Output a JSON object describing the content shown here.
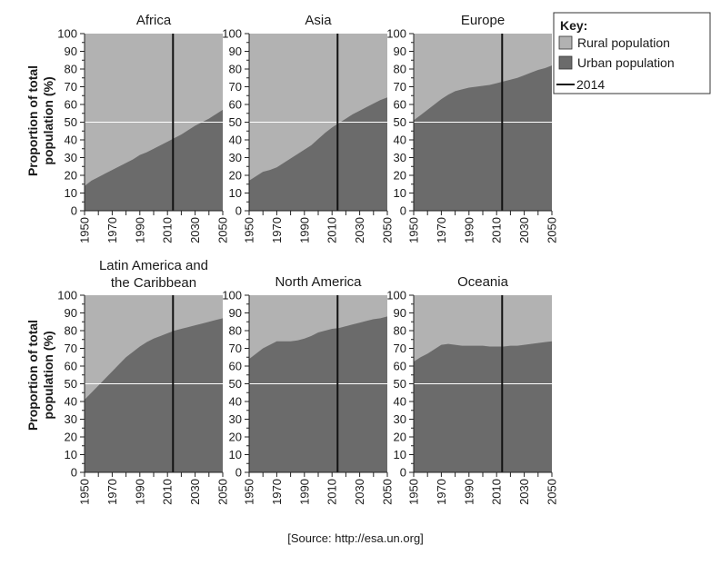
{
  "source": "[Source: http://esa.un.org]",
  "ylabel_line1": "Proportion of total",
  "ylabel_line2": "population (%)",
  "legend": {
    "title": "Key:",
    "rural_label": "Rural population",
    "urban_label": "Urban population",
    "marker_label": "2014"
  },
  "colors": {
    "rural": "#b2b2b2",
    "urban": "#6b6b6b",
    "marker": "#111111",
    "midline": "#ffffff"
  },
  "chart_data": [
    {
      "type": "area",
      "title": "Africa",
      "x": [
        1950,
        1955,
        1960,
        1965,
        1970,
        1975,
        1980,
        1985,
        1990,
        1995,
        2000,
        2005,
        2010,
        2015,
        2020,
        2025,
        2030,
        2035,
        2040,
        2045,
        2050
      ],
      "series": [
        {
          "name": "Urban population",
          "values": [
            14,
            17,
            19,
            21,
            23,
            25,
            27,
            29,
            31.5,
            33,
            35,
            37,
            39,
            41,
            43,
            45.5,
            48,
            50,
            52,
            54.5,
            57
          ]
        }
      ],
      "xticks": [
        1950,
        1970,
        1990,
        2010,
        2030,
        2050
      ],
      "yticks": [
        0,
        10,
        20,
        30,
        40,
        50,
        60,
        70,
        80,
        90,
        100
      ],
      "ylim": [
        0,
        100
      ],
      "xlim": [
        1950,
        2050
      ],
      "marker_x": 2014
    },
    {
      "type": "area",
      "title": "Asia",
      "x": [
        1950,
        1955,
        1960,
        1965,
        1970,
        1975,
        1980,
        1985,
        1990,
        1995,
        2000,
        2005,
        2010,
        2015,
        2020,
        2025,
        2030,
        2035,
        2040,
        2045,
        2050
      ],
      "series": [
        {
          "name": "Urban population",
          "values": [
            17,
            19.5,
            22,
            23,
            24.5,
            27,
            29.5,
            32,
            34.5,
            37,
            40.5,
            44,
            47,
            49.5,
            52,
            54.5,
            56.5,
            58.5,
            60.5,
            62.5,
            64
          ]
        }
      ],
      "xticks": [
        1950,
        1970,
        1990,
        2010,
        2030,
        2050
      ],
      "yticks": [
        0,
        10,
        20,
        30,
        40,
        50,
        60,
        70,
        80,
        90,
        100
      ],
      "ylim": [
        0,
        100
      ],
      "xlim": [
        1950,
        2050
      ],
      "marker_x": 2014
    },
    {
      "type": "area",
      "title": "Europe",
      "x": [
        1950,
        1955,
        1960,
        1965,
        1970,
        1975,
        1980,
        1985,
        1990,
        1995,
        2000,
        2005,
        2010,
        2015,
        2020,
        2025,
        2030,
        2035,
        2040,
        2045,
        2050
      ],
      "series": [
        {
          "name": "Urban population",
          "values": [
            51,
            54,
            57,
            60,
            63,
            65.5,
            67.5,
            68.5,
            69.5,
            70,
            70.5,
            71,
            72,
            73,
            74,
            75,
            76.5,
            78,
            79.5,
            80.5,
            82
          ]
        }
      ],
      "xticks": [
        1950,
        1970,
        1990,
        2010,
        2030,
        2050
      ],
      "yticks": [
        0,
        10,
        20,
        30,
        40,
        50,
        60,
        70,
        80,
        90,
        100
      ],
      "ylim": [
        0,
        100
      ],
      "xlim": [
        1950,
        2050
      ],
      "marker_x": 2014
    },
    {
      "type": "area",
      "title": "Latin America and",
      "title_line2": "the Caribbean",
      "x": [
        1950,
        1955,
        1960,
        1965,
        1970,
        1975,
        1980,
        1985,
        1990,
        1995,
        2000,
        2005,
        2010,
        2015,
        2020,
        2025,
        2030,
        2035,
        2040,
        2045,
        2050
      ],
      "series": [
        {
          "name": "Urban population",
          "values": [
            41,
            45,
            49,
            53,
            57,
            61,
            65,
            68,
            71,
            73.5,
            75.5,
            77,
            78.5,
            80,
            81,
            82,
            83,
            84,
            85,
            86,
            87
          ]
        }
      ],
      "xticks": [
        1950,
        1970,
        1990,
        2010,
        2030,
        2050
      ],
      "yticks": [
        0,
        10,
        20,
        30,
        40,
        50,
        60,
        70,
        80,
        90,
        100
      ],
      "ylim": [
        0,
        100
      ],
      "xlim": [
        1950,
        2050
      ],
      "marker_x": 2014
    },
    {
      "type": "area",
      "title": "North America",
      "x": [
        1950,
        1955,
        1960,
        1965,
        1970,
        1975,
        1980,
        1985,
        1990,
        1995,
        2000,
        2005,
        2010,
        2015,
        2020,
        2025,
        2030,
        2035,
        2040,
        2045,
        2050
      ],
      "series": [
        {
          "name": "Urban population",
          "values": [
            64,
            67,
            70,
            72,
            74,
            74,
            74,
            74.5,
            75.5,
            77,
            79,
            80,
            81,
            81.5,
            82.5,
            83.5,
            84.5,
            85.5,
            86.5,
            87,
            88
          ]
        }
      ],
      "xticks": [
        1950,
        1970,
        1990,
        2010,
        2030,
        2050
      ],
      "yticks": [
        0,
        10,
        20,
        30,
        40,
        50,
        60,
        70,
        80,
        90,
        100
      ],
      "ylim": [
        0,
        100
      ],
      "xlim": [
        1950,
        2050
      ],
      "marker_x": 2014
    },
    {
      "type": "area",
      "title": "Oceania",
      "x": [
        1950,
        1955,
        1960,
        1965,
        1970,
        1975,
        1980,
        1985,
        1990,
        1995,
        2000,
        2005,
        2010,
        2015,
        2020,
        2025,
        2030,
        2035,
        2040,
        2045,
        2050
      ],
      "series": [
        {
          "name": "Urban population",
          "values": [
            62.5,
            65,
            67,
            69.5,
            72,
            72.5,
            72,
            71.5,
            71.5,
            71.5,
            71.5,
            71,
            71,
            71,
            71.5,
            71.5,
            72,
            72.5,
            73,
            73.5,
            74
          ]
        }
      ],
      "xticks": [
        1950,
        1970,
        1990,
        2010,
        2030,
        2050
      ],
      "yticks": [
        0,
        10,
        20,
        30,
        40,
        50,
        60,
        70,
        80,
        90,
        100
      ],
      "ylim": [
        0,
        100
      ],
      "xlim": [
        1950,
        2050
      ],
      "marker_x": 2014
    }
  ]
}
